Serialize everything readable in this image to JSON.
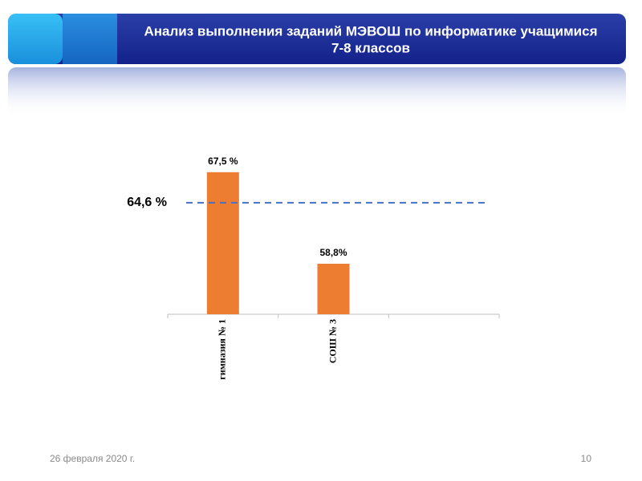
{
  "slide": {
    "title": [
      "Анализ выполнения заданий МЭВОШ по информатике учащимися",
      "7-8 классов"
    ],
    "date": "26 февраля 2020 г.",
    "page": "10"
  },
  "chart_data": {
    "type": "bar",
    "categories": [
      "гимназия № 1",
      "СОШ № 3",
      null
    ],
    "values": [
      67.5,
      58.8,
      null
    ],
    "value_labels": [
      "67,5 %",
      "58,8%",
      null
    ],
    "color": "#ed7d31",
    "ylim": [
      54,
      70
    ],
    "reference_line": {
      "value": 64.6,
      "label": "64,6 %",
      "color": "#4472c4"
    }
  }
}
